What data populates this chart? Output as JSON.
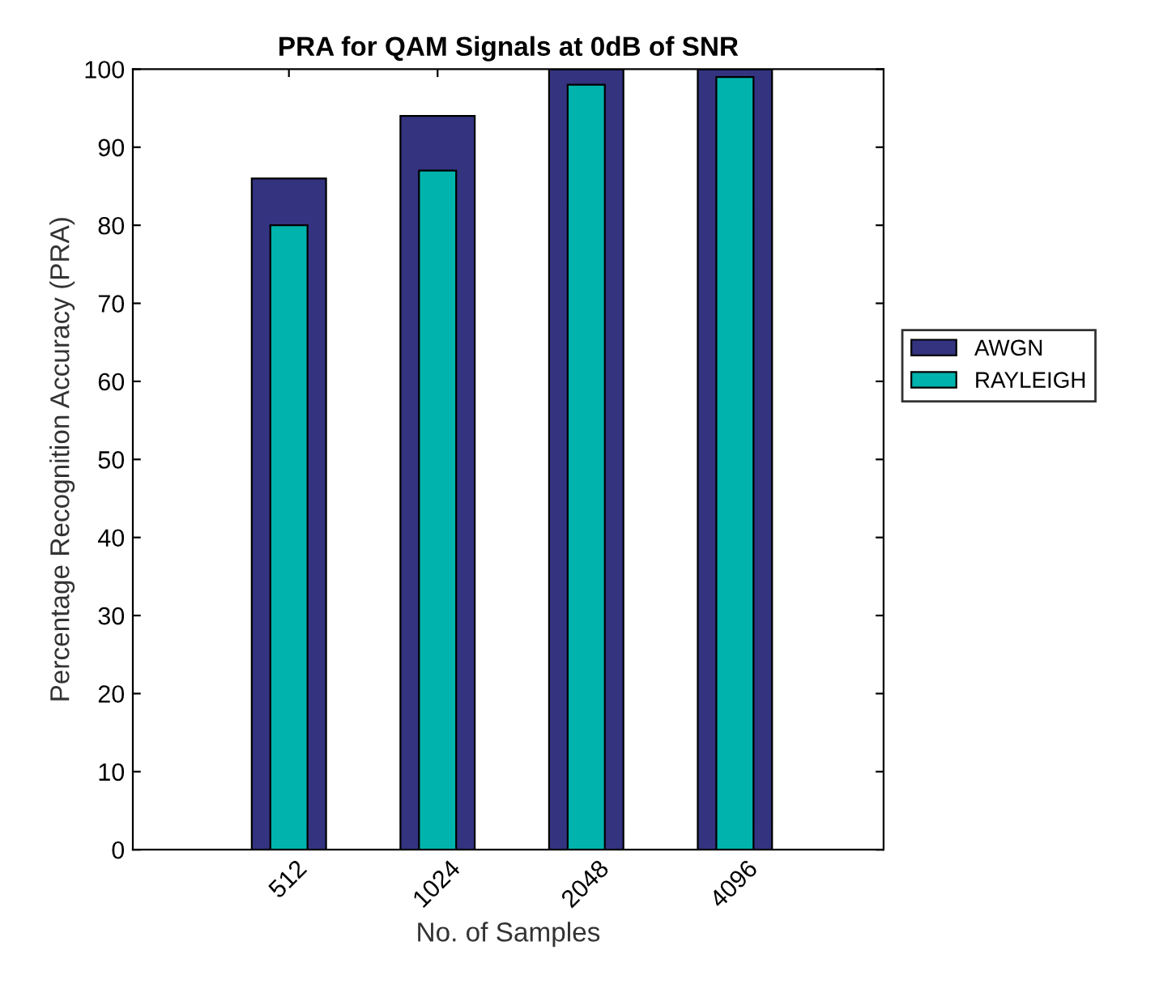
{
  "chart_data": {
    "type": "bar",
    "title": "PRA for QAM Signals at 0dB of SNR",
    "xlabel": "No. of Samples",
    "ylabel": "Percentage Recognition Accuracy (PRA)",
    "categories": [
      "512",
      "1024",
      "2048",
      "4096"
    ],
    "series": [
      {
        "name": "AWGN",
        "color": "#333380",
        "values": [
          86,
          94,
          100,
          100
        ]
      },
      {
        "name": "RAYLEIGH",
        "color": "#00b3ad",
        "values": [
          80,
          87,
          98,
          99
        ]
      }
    ],
    "ylim": [
      0,
      100
    ],
    "yticks": [
      0,
      10,
      20,
      30,
      40,
      50,
      60,
      70,
      80,
      90,
      100
    ],
    "legend": "right"
  }
}
